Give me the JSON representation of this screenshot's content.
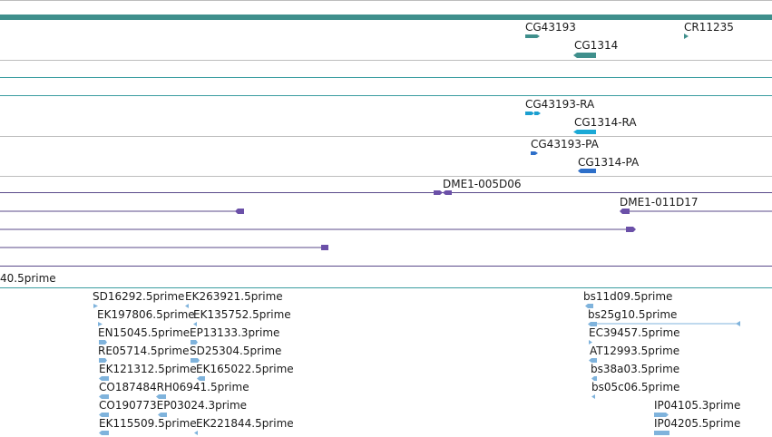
{
  "colors": {
    "gene": "#3f8f8c",
    "transcript_ra": "#1b9fd0",
    "transcript_pa": "#2e6fc9",
    "clone": "#6b50a8",
    "est": "#7fb3dc"
  },
  "tracks": {
    "genes": [
      {
        "label": "CG43193"
      },
      {
        "label": "CR11235"
      },
      {
        "label": "CG1314"
      }
    ],
    "transcripts": [
      {
        "label": "CG43193-RA"
      },
      {
        "label": "CG1314-RA"
      }
    ],
    "proteins": [
      {
        "label": "CG43193-PA"
      },
      {
        "label": "CG1314-PA"
      }
    ],
    "clones": [
      {
        "label": "DME1-005D06"
      },
      {
        "label": "DME1-011D17"
      }
    ],
    "est_partial": "40.5prime",
    "ests": [
      {
        "label": "SD16292.5prime"
      },
      {
        "label": "EK263921.5prime"
      },
      {
        "label": "bs11d09.5prime"
      },
      {
        "label": "EK197806.5prime"
      },
      {
        "label": "EK135752.5prime"
      },
      {
        "label": "bs25g10.5prime"
      },
      {
        "label": "EN15045.5prime"
      },
      {
        "label": "EP13133.3prime"
      },
      {
        "label": "EC39457.5prime"
      },
      {
        "label": "RE05714.5prime"
      },
      {
        "label": "SD25304.5prime"
      },
      {
        "label": "AT12993.5prime"
      },
      {
        "label": "EK121312.5prime"
      },
      {
        "label": "EK165022.5prime"
      },
      {
        "label": "bs38a03.5prime"
      },
      {
        "label": "CO187484RH06941.5prime"
      },
      {
        "label": "bs05c06.5prime"
      },
      {
        "label": "CO190773EP03024.3prime"
      },
      {
        "label": "IP04105.3prime"
      },
      {
        "label": "EK115509.5prime"
      },
      {
        "label": "EK221844.5prime"
      },
      {
        "label": "IP04205.5prime"
      }
    ]
  }
}
